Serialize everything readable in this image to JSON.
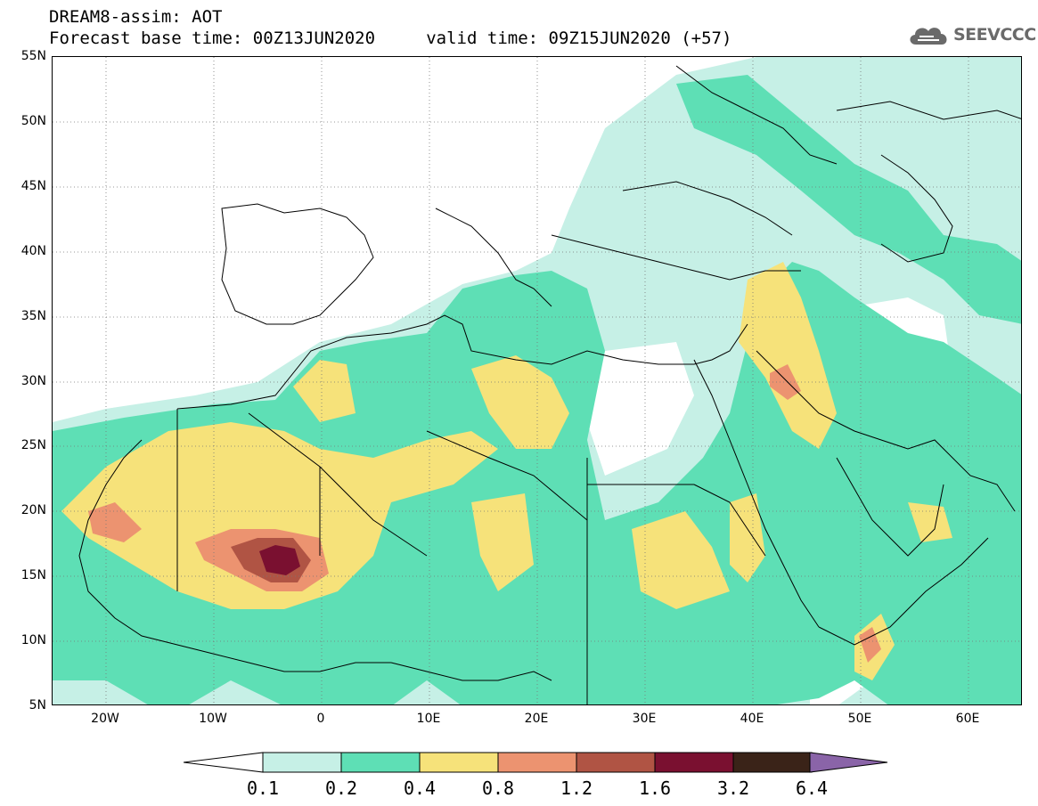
{
  "header": {
    "title_line1": "DREAM8-assim: AOT",
    "title_line2": "Forecast base time: 00Z13JUN2020     valid time: 09Z15JUN2020 (+57)"
  },
  "logo": {
    "text": "SEEVCCC",
    "icon": "cloud-icon"
  },
  "map": {
    "variable": "AOT",
    "lat_range": [
      5,
      55
    ],
    "lon_range": [
      -25,
      65
    ],
    "lat_labels": [
      {
        "value": 55,
        "label": "55N"
      },
      {
        "value": 50,
        "label": "50N"
      },
      {
        "value": 45,
        "label": "45N"
      },
      {
        "value": 40,
        "label": "40N"
      },
      {
        "value": 35,
        "label": "35N"
      },
      {
        "value": 30,
        "label": "30N"
      },
      {
        "value": 25,
        "label": "25N"
      },
      {
        "value": 20,
        "label": "20N"
      },
      {
        "value": 15,
        "label": "15N"
      },
      {
        "value": 10,
        "label": "10N"
      },
      {
        "value": 5,
        "label": "5N"
      }
    ],
    "lon_labels": [
      {
        "value": -20,
        "label": "20W"
      },
      {
        "value": -10,
        "label": "10W"
      },
      {
        "value": 0,
        "label": "0"
      },
      {
        "value": 10,
        "label": "10E"
      },
      {
        "value": 20,
        "label": "20E"
      },
      {
        "value": 30,
        "label": "30E"
      },
      {
        "value": 40,
        "label": "40E"
      },
      {
        "value": 50,
        "label": "50E"
      },
      {
        "value": 60,
        "label": "60E"
      }
    ]
  },
  "legend": {
    "colors": [
      "#c6f0e6",
      "#5edfb5",
      "#f6e27a",
      "#ec9370",
      "#b05444",
      "#7a1030",
      "#3a2318"
    ],
    "under_color": "#ffffff",
    "over_color": "#8a64a8",
    "ticks": [
      "0.1",
      "0.2",
      "0.4",
      "0.8",
      "1.2",
      "1.6",
      "3.2",
      "6.4"
    ]
  }
}
